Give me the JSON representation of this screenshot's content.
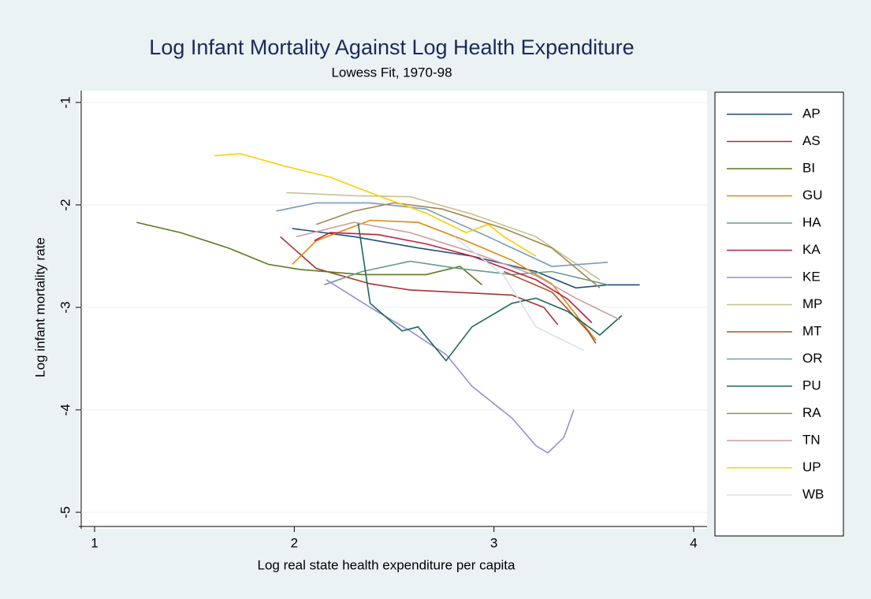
{
  "chart_data": {
    "type": "line",
    "title": "Log Infant Mortality Against Log Health Expenditure",
    "subtitle": "Lowess Fit, 1970-98",
    "x_label": "Log real state health expenditure per capita",
    "y_label": "Log infant mortality rate",
    "xlim": [
      1,
      4
    ],
    "xticks": [
      1,
      2,
      3,
      4
    ],
    "ylim": [
      -5,
      -1
    ],
    "yticks": [
      -1,
      -2,
      -3,
      -4,
      -5
    ],
    "grid": true,
    "legend": "right",
    "series": [
      {
        "name": "AP",
        "color": "#1f4e79",
        "x": [
          1.99,
          2.3,
          2.62,
          2.89,
          3.21,
          3.41,
          3.57,
          3.73
        ],
        "values": [
          -2.23,
          -2.31,
          -2.42,
          -2.5,
          -2.65,
          -2.81,
          -2.78,
          -2.78
        ]
      },
      {
        "name": "AS",
        "color": "#a83232",
        "x": [
          1.93,
          2.11,
          2.38,
          2.58,
          2.89,
          3.09,
          3.25,
          3.32
        ],
        "values": [
          -2.31,
          -2.62,
          -2.77,
          -2.83,
          -2.86,
          -2.88,
          -3.0,
          -3.17
        ]
      },
      {
        "name": "BI",
        "color": "#5a7a20",
        "x": [
          1.21,
          1.43,
          1.67,
          1.87,
          2.03,
          2.34,
          2.66,
          2.83,
          2.94
        ],
        "values": [
          -2.17,
          -2.27,
          -2.42,
          -2.58,
          -2.63,
          -2.68,
          -2.68,
          -2.6,
          -2.78
        ]
      },
      {
        "name": "GU",
        "color": "#e08a10",
        "x": [
          1.99,
          2.11,
          2.38,
          2.62,
          2.86,
          3.09,
          3.29,
          3.51
        ],
        "values": [
          -2.58,
          -2.35,
          -2.15,
          -2.17,
          -2.35,
          -2.54,
          -2.77,
          -3.32
        ]
      },
      {
        "name": "HA",
        "color": "#6a9a8a",
        "x": [
          2.15,
          2.34,
          2.58,
          2.82,
          3.09,
          3.29,
          3.57
        ],
        "values": [
          -2.78,
          -2.65,
          -2.55,
          -2.62,
          -2.68,
          -2.65,
          -2.78
        ]
      },
      {
        "name": "KA",
        "color": "#c02040",
        "x": [
          2.1,
          2.18,
          2.42,
          2.66,
          2.89,
          3.21,
          3.37,
          3.49
        ],
        "values": [
          -2.35,
          -2.27,
          -2.29,
          -2.38,
          -2.5,
          -2.73,
          -2.92,
          -3.15
        ]
      },
      {
        "name": "KE",
        "color": "#9a8ad8",
        "x": [
          2.16,
          2.38,
          2.58,
          2.76,
          2.89,
          3.09,
          3.21,
          3.27,
          3.35,
          3.4
        ],
        "values": [
          -2.73,
          -3.0,
          -3.23,
          -3.46,
          -3.77,
          -4.08,
          -4.35,
          -4.42,
          -4.27,
          -4.0
        ]
      },
      {
        "name": "MP",
        "color": "#c8c090",
        "x": [
          1.96,
          2.3,
          2.58,
          2.89,
          3.21,
          3.53
        ],
        "values": [
          -1.88,
          -1.91,
          -1.92,
          -2.09,
          -2.31,
          -2.73
        ]
      },
      {
        "name": "MT",
        "color": "#b05020",
        "x": [
          3.05,
          3.29,
          3.47,
          3.51
        ],
        "values": [
          -2.65,
          -2.85,
          -3.23,
          -3.35
        ]
      },
      {
        "name": "OR",
        "color": "#7a9ab8",
        "x": [
          1.91,
          2.11,
          2.38,
          2.66,
          2.97,
          3.29,
          3.57
        ],
        "values": [
          -2.06,
          -1.98,
          -1.98,
          -2.04,
          -2.31,
          -2.6,
          -2.56
        ]
      },
      {
        "name": "PU",
        "color": "#1a6a5a",
        "x": [
          2.32,
          2.38,
          2.54,
          2.62,
          2.76,
          2.89,
          3.09,
          3.21,
          3.37,
          3.53,
          3.64
        ],
        "values": [
          -2.18,
          -2.96,
          -3.23,
          -3.19,
          -3.52,
          -3.19,
          -2.96,
          -2.91,
          -3.04,
          -3.27,
          -3.08
        ]
      },
      {
        "name": "RA",
        "color": "#a08a50",
        "x": [
          2.11,
          2.3,
          2.5,
          2.74,
          3.05,
          3.29,
          3.53
        ],
        "values": [
          -2.19,
          -2.06,
          -1.98,
          -2.04,
          -2.23,
          -2.42,
          -2.81
        ]
      },
      {
        "name": "TN",
        "color": "#c8a0a0",
        "x": [
          2.01,
          2.3,
          2.58,
          2.89,
          3.21,
          3.41,
          3.63
        ],
        "values": [
          -2.31,
          -2.17,
          -2.27,
          -2.46,
          -2.69,
          -2.91,
          -3.12
        ]
      },
      {
        "name": "UP",
        "color": "#ffcc00",
        "x": [
          1.6,
          1.73,
          1.95,
          2.18,
          2.42,
          2.66,
          2.86,
          2.97,
          3.05,
          3.21
        ],
        "values": [
          -1.52,
          -1.5,
          -1.62,
          -1.73,
          -1.91,
          -2.08,
          -2.27,
          -2.19,
          -2.31,
          -2.5
        ]
      },
      {
        "name": "WB",
        "color": "#d8e0e8",
        "x": [
          2.8,
          3.05,
          3.21,
          3.45
        ],
        "values": [
          -2.31,
          -2.69,
          -3.19,
          -3.42
        ]
      }
    ]
  }
}
